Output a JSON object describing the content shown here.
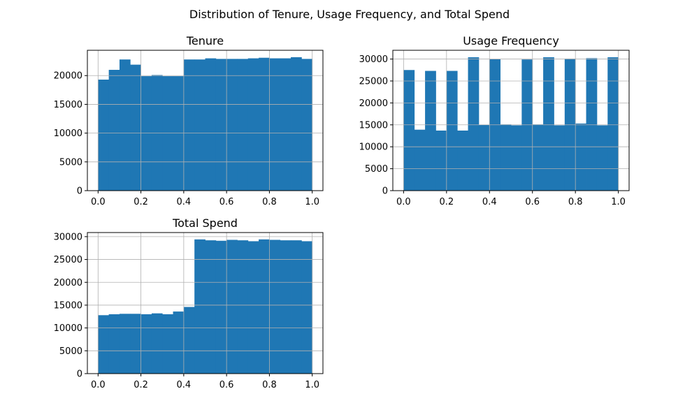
{
  "figure": {
    "suptitle": "Distribution of Tenure, Usage Frequency, and Total Spend"
  },
  "chart_data": [
    {
      "type": "bar",
      "title": "Tenure",
      "xlabel": "",
      "ylabel": "",
      "grid": true,
      "bar_color": "#1f77b4",
      "bin_range": [
        0,
        1
      ],
      "xlim": [
        -0.05,
        1.05
      ],
      "ylim": [
        0,
        24400
      ],
      "xticks": [
        0.0,
        0.2,
        0.4,
        0.6,
        0.8,
        1.0
      ],
      "xtick_labels": [
        "0.0",
        "0.2",
        "0.4",
        "0.6",
        "0.8",
        "1.0"
      ],
      "yticks": [
        0,
        5000,
        10000,
        15000,
        20000
      ],
      "ytick_labels": [
        "0",
        "5000",
        "10000",
        "15000",
        "20000"
      ],
      "values": [
        19300,
        21000,
        22800,
        21900,
        19900,
        20100,
        19900,
        19900,
        22800,
        22800,
        23000,
        22900,
        22900,
        22900,
        23000,
        23100,
        23000,
        23000,
        23200,
        22900
      ]
    },
    {
      "type": "bar",
      "title": "Usage Frequency",
      "xlabel": "",
      "ylabel": "",
      "grid": true,
      "bar_color": "#1f77b4",
      "bin_range": [
        0,
        1
      ],
      "xlim": [
        -0.05,
        1.05
      ],
      "ylim": [
        0,
        32000
      ],
      "xticks": [
        0.0,
        0.2,
        0.4,
        0.6,
        0.8,
        1.0
      ],
      "xtick_labels": [
        "0.0",
        "0.2",
        "0.4",
        "0.6",
        "0.8",
        "1.0"
      ],
      "yticks": [
        0,
        5000,
        10000,
        15000,
        20000,
        25000,
        30000
      ],
      "ytick_labels": [
        "0",
        "5000",
        "10000",
        "15000",
        "20000",
        "25000",
        "30000"
      ],
      "values": [
        27500,
        13900,
        27300,
        13700,
        27300,
        13700,
        30400,
        15000,
        30000,
        15100,
        14900,
        29900,
        15100,
        30400,
        14900,
        30100,
        15300,
        30200,
        14900,
        30400
      ]
    },
    {
      "type": "bar",
      "title": "Total Spend",
      "xlabel": "",
      "ylabel": "",
      "grid": true,
      "bar_color": "#1f77b4",
      "bin_range": [
        0,
        1
      ],
      "xlim": [
        -0.05,
        1.05
      ],
      "ylim": [
        0,
        30900
      ],
      "xticks": [
        0.0,
        0.2,
        0.4,
        0.6,
        0.8,
        1.0
      ],
      "xtick_labels": [
        "0.0",
        "0.2",
        "0.4",
        "0.6",
        "0.8",
        "1.0"
      ],
      "yticks": [
        0,
        5000,
        10000,
        15000,
        20000,
        25000,
        30000
      ],
      "ytick_labels": [
        "0",
        "5000",
        "10000",
        "15000",
        "20000",
        "25000",
        "30000"
      ],
      "values": [
        12800,
        13000,
        13100,
        13100,
        13000,
        13200,
        13000,
        13600,
        14600,
        29400,
        29200,
        29100,
        29300,
        29200,
        29000,
        29400,
        29300,
        29200,
        29200,
        29000
      ]
    }
  ]
}
